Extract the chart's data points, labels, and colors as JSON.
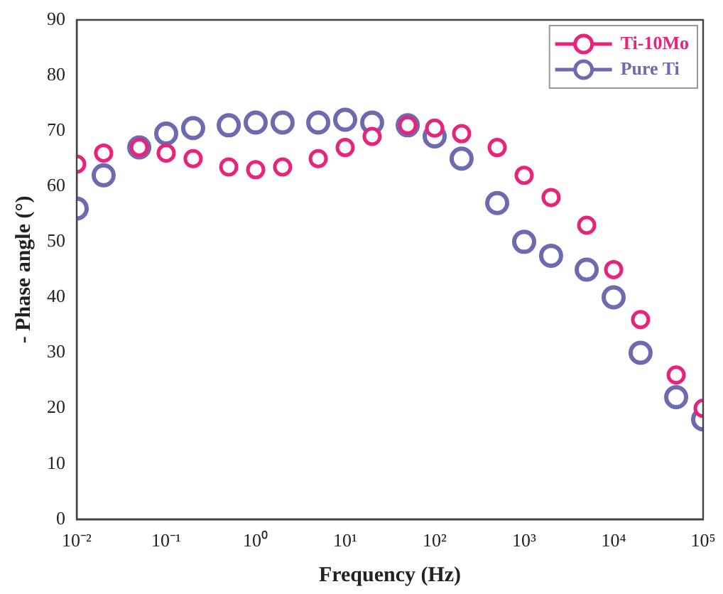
{
  "chart_data": {
    "type": "scatter",
    "xlabel": "Frequency (Hz)",
    "ylabel": "- Phase angle (°)",
    "log": "x",
    "x": [
      0.01,
      0.02,
      0.05,
      0.1,
      0.2,
      0.5,
      1,
      2,
      5,
      10,
      20,
      50,
      100,
      200,
      500,
      1000,
      2000,
      5000,
      10000,
      20000,
      50000,
      100000
    ],
    "series": [
      {
        "name": "Ti-10Mo",
        "color": "#e8237a",
        "marker": "circle",
        "values": [
          64,
          66,
          67,
          66,
          65,
          63.5,
          63,
          63.5,
          65,
          67,
          69,
          71,
          70.5,
          69.5,
          67,
          62,
          58,
          53,
          45,
          36,
          26,
          20
        ]
      },
      {
        "name": "Pure Ti",
        "color": "#6e6ab0",
        "marker": "circle",
        "values": [
          56,
          62,
          67,
          69.5,
          70.5,
          71,
          71.5,
          71.5,
          71.5,
          72,
          71.5,
          71,
          69,
          65,
          57,
          50,
          47.5,
          45,
          40,
          30,
          22,
          18
        ]
      }
    ],
    "xlim": [
      0.01,
      100000
    ],
    "xticks": [
      {
        "value": 0.01,
        "label": "10⁻²"
      },
      {
        "value": 0.1,
        "label": "10⁻¹"
      },
      {
        "value": 1,
        "label": "10⁰"
      },
      {
        "value": 10,
        "label": "10¹"
      },
      {
        "value": 100,
        "label": "10²"
      },
      {
        "value": 1000,
        "label": "10³"
      },
      {
        "value": 10000,
        "label": "10⁴"
      },
      {
        "value": 100000,
        "label": "10⁵"
      }
    ],
    "ylim": [
      0,
      90
    ],
    "yticks": [
      0,
      10,
      20,
      30,
      40,
      50,
      60,
      70,
      80,
      90
    ],
    "grid": false,
    "legend": "top right"
  }
}
